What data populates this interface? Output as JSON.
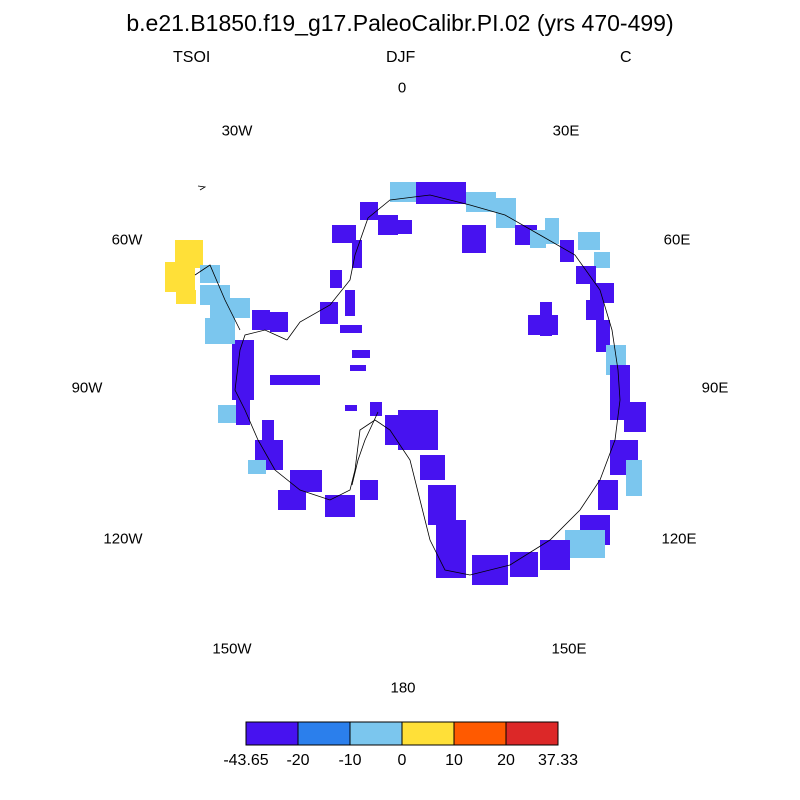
{
  "title": "b.e21.B1850.f19_g17.PaleoCalibr.PI.02 (yrs 470-499)",
  "left_label": "TSOI",
  "center_label": "DJF",
  "right_label": "C",
  "longitude_labels": {
    "lon_0": "0",
    "lon_30e": "30E",
    "lon_60e": "60E",
    "lon_90e": "90E",
    "lon_120e": "120E",
    "lon_150e": "150E",
    "lon_180": "180",
    "lon_150w": "150W",
    "lon_120w": "120W",
    "lon_90w": "90W",
    "lon_60w": "60W",
    "lon_30w": "30W"
  },
  "colorbar": {
    "labels": [
      "-43.65",
      "-20",
      "-10",
      "0",
      "10",
      "20",
      "37.33"
    ],
    "colors": [
      "#4712f0",
      "#2b7fec",
      "#7bc6ee",
      "#ffe038",
      "#ff5a00",
      "#dc2828"
    ]
  },
  "chart_data": {
    "type": "heatmap",
    "projection": "south polar stereographic",
    "variable": "TSOI",
    "season": "DJF",
    "units": "C",
    "range": [
      -43.65,
      37.33
    ],
    "levels": [
      -43.65,
      -20,
      -10,
      0,
      10,
      20,
      37.33
    ]
  }
}
